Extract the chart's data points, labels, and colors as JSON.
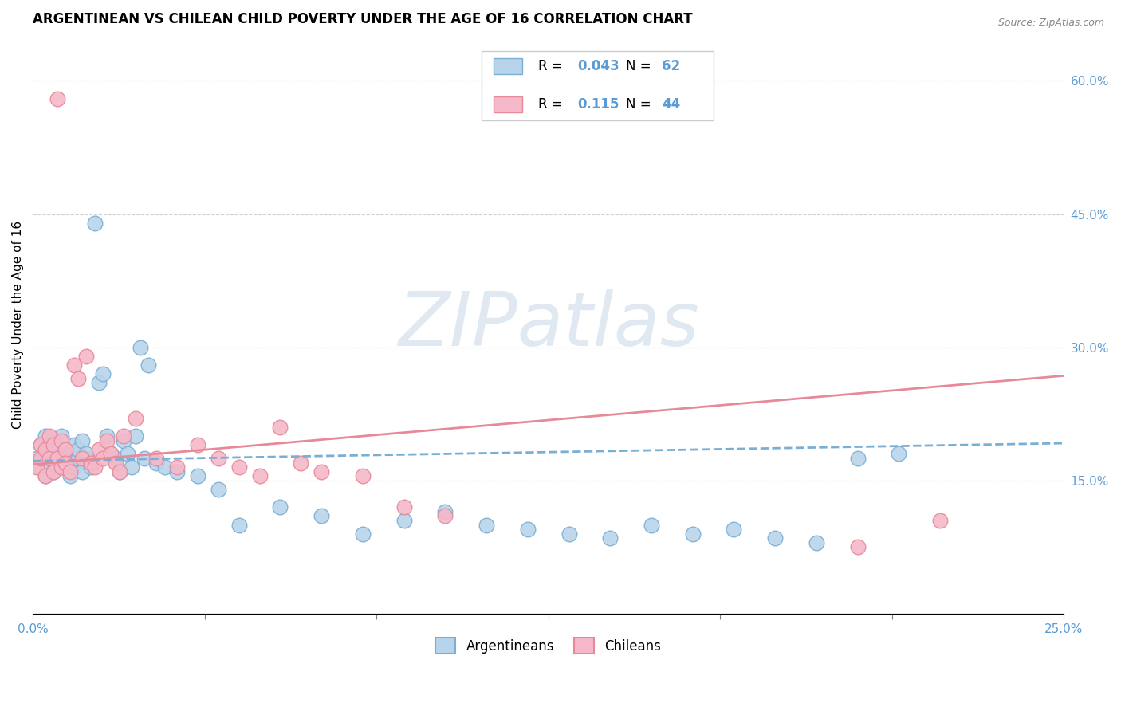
{
  "title": "ARGENTINEAN VS CHILEAN CHILD POVERTY UNDER THE AGE OF 16 CORRELATION CHART",
  "source": "Source: ZipAtlas.com",
  "ylabel": "Child Poverty Under the Age of 16",
  "ylabel_right_vals": [
    0.6,
    0.45,
    0.3,
    0.15
  ],
  "watermark": "ZIPatlas",
  "arg_color": "#b8d4ea",
  "chi_color": "#f5b8c8",
  "arg_edge_color": "#7aafd4",
  "chi_edge_color": "#e8899a",
  "arg_line_color": "#7aafd4",
  "chi_line_color": "#e8899a",
  "background_color": "#ffffff",
  "xlim": [
    0.0,
    0.25
  ],
  "ylim": [
    0.0,
    0.65
  ],
  "arg_r": 0.043,
  "arg_n": 62,
  "chi_r": 0.115,
  "chi_n": 44,
  "arg_x": [
    0.001,
    0.002,
    0.002,
    0.003,
    0.003,
    0.004,
    0.004,
    0.005,
    0.005,
    0.006,
    0.006,
    0.007,
    0.007,
    0.008,
    0.008,
    0.009,
    0.009,
    0.01,
    0.01,
    0.011,
    0.011,
    0.012,
    0.012,
    0.013,
    0.013,
    0.014,
    0.015,
    0.016,
    0.017,
    0.018,
    0.019,
    0.02,
    0.021,
    0.022,
    0.023,
    0.024,
    0.025,
    0.026,
    0.027,
    0.028,
    0.03,
    0.032,
    0.035,
    0.04,
    0.045,
    0.05,
    0.06,
    0.07,
    0.08,
    0.09,
    0.1,
    0.11,
    0.12,
    0.13,
    0.14,
    0.15,
    0.16,
    0.17,
    0.18,
    0.19,
    0.2,
    0.21
  ],
  "arg_y": [
    0.175,
    0.165,
    0.19,
    0.155,
    0.2,
    0.17,
    0.185,
    0.16,
    0.195,
    0.175,
    0.185,
    0.165,
    0.2,
    0.17,
    0.185,
    0.155,
    0.18,
    0.165,
    0.19,
    0.175,
    0.185,
    0.16,
    0.195,
    0.175,
    0.18,
    0.165,
    0.44,
    0.26,
    0.27,
    0.2,
    0.18,
    0.175,
    0.16,
    0.195,
    0.18,
    0.165,
    0.2,
    0.3,
    0.175,
    0.28,
    0.17,
    0.165,
    0.16,
    0.155,
    0.14,
    0.1,
    0.12,
    0.11,
    0.09,
    0.105,
    0.115,
    0.1,
    0.095,
    0.09,
    0.085,
    0.1,
    0.09,
    0.095,
    0.085,
    0.08,
    0.175,
    0.18
  ],
  "chi_x": [
    0.001,
    0.002,
    0.002,
    0.003,
    0.003,
    0.004,
    0.004,
    0.005,
    0.005,
    0.006,
    0.006,
    0.007,
    0.007,
    0.008,
    0.008,
    0.009,
    0.01,
    0.011,
    0.012,
    0.013,
    0.014,
    0.015,
    0.016,
    0.017,
    0.018,
    0.019,
    0.02,
    0.021,
    0.022,
    0.025,
    0.03,
    0.035,
    0.04,
    0.045,
    0.05,
    0.055,
    0.06,
    0.065,
    0.07,
    0.08,
    0.09,
    0.1,
    0.2,
    0.22
  ],
  "chi_y": [
    0.165,
    0.175,
    0.19,
    0.155,
    0.185,
    0.175,
    0.2,
    0.16,
    0.19,
    0.58,
    0.175,
    0.165,
    0.195,
    0.185,
    0.17,
    0.16,
    0.28,
    0.265,
    0.175,
    0.29,
    0.17,
    0.165,
    0.185,
    0.175,
    0.195,
    0.18,
    0.17,
    0.16,
    0.2,
    0.22,
    0.175,
    0.165,
    0.19,
    0.175,
    0.165,
    0.155,
    0.21,
    0.17,
    0.16,
    0.155,
    0.12,
    0.11,
    0.075,
    0.105
  ]
}
